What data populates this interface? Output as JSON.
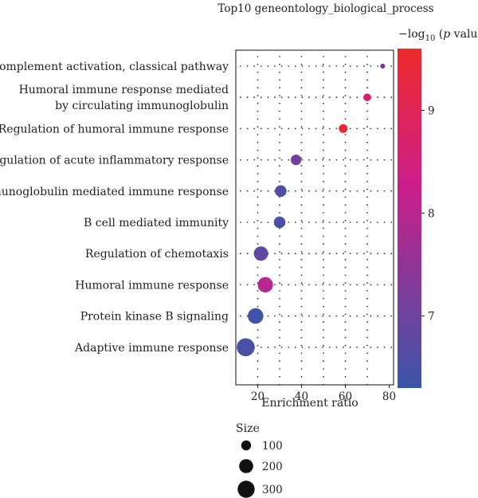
{
  "chart_data": {
    "type": "scatter",
    "title": "Top10 geneontology_biological_process",
    "xlabel": "Enrichment ratio",
    "ylabel": "",
    "xlim": [
      10,
      82
    ],
    "xticks": [
      20,
      40,
      60,
      80
    ],
    "categories": [
      "Complement activation, classical pathway",
      "Humoral immune response mediated by circulating immunoglobulin",
      "Regulation of humoral immune response",
      "Regulation of acute inflammatory response",
      "Immunoglobulin mediated immune response",
      "B cell mediated immunity",
      "Regulation of chemotaxis",
      "Humoral immune response",
      "Protein kinase B signaling",
      "Adaptive immune response"
    ],
    "category_lines": [
      [
        "Complement activation, classical pathway"
      ],
      [
        "Humoral immune response mediated",
        "by circulating immunoglobulin"
      ],
      [
        "Regulation of humoral immune response"
      ],
      [
        "Regulation of acute inflammatory response"
      ],
      [
        "Immunoglobulin mediated immune response"
      ],
      [
        "B cell mediated immunity"
      ],
      [
        "Regulation of chemotaxis"
      ],
      [
        "Humoral immune response"
      ],
      [
        "Protein kinase B signaling"
      ],
      [
        "Adaptive immune response"
      ]
    ],
    "points": [
      {
        "x": 77,
        "size": 25,
        "logp": 7.2
      },
      {
        "x": 70,
        "size": 60,
        "logp": 8.7
      },
      {
        "x": 59,
        "size": 80,
        "logp": 9.4
      },
      {
        "x": 37.5,
        "size": 115,
        "logp": 7.1
      },
      {
        "x": 30.5,
        "size": 140,
        "logp": 6.6
      },
      {
        "x": 30,
        "size": 140,
        "logp": 6.5
      },
      {
        "x": 21.5,
        "size": 210,
        "logp": 6.8
      },
      {
        "x": 23.5,
        "size": 240,
        "logp": 8.0
      },
      {
        "x": 19,
        "size": 250,
        "logp": 6.4
      },
      {
        "x": 14.5,
        "size": 330,
        "logp": 6.5
      }
    ],
    "colorbar": {
      "label_prefix": "−log",
      "label_sub": "10",
      "label_suffix_open": " (",
      "label_p": "p",
      "label_suffix_close": " value)",
      "min": 6.3,
      "max": 9.6,
      "ticks": [
        7,
        8,
        9
      ],
      "colors": [
        "#3a56a8",
        "#cc1f8a",
        "#ee2a2a"
      ]
    },
    "size_legend": {
      "title": "Size",
      "values": [
        100,
        200,
        300
      ]
    }
  }
}
